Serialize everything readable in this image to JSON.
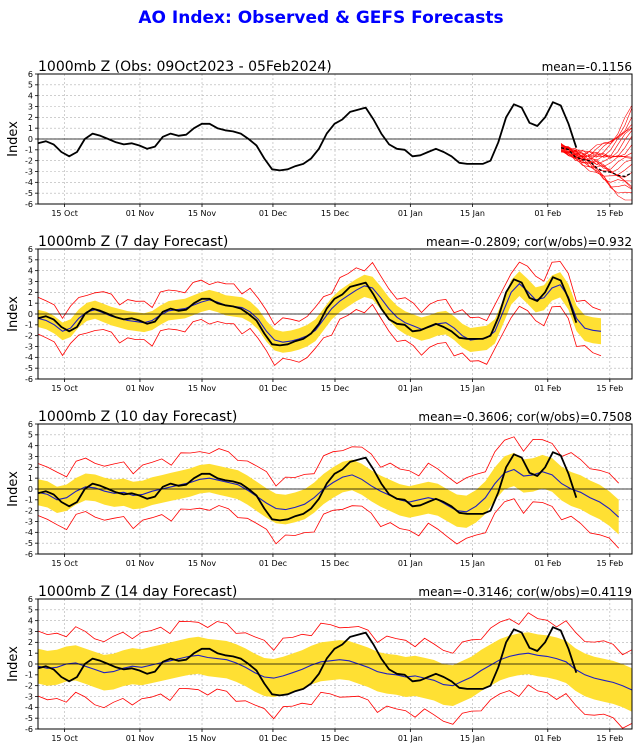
{
  "title": "AO Index: Observed & GEFS Forecasts",
  "colors": {
    "title": "#0000ff",
    "observed": "#000000",
    "ensemble": "#ff0000",
    "spread": "#ffe033",
    "mean": "#2020c0",
    "member": "#ff0000"
  },
  "chart_data": [
    {
      "type": "line",
      "title": "1000mb Z (Obs: 09Oct2023 - 05Feb2024)",
      "stat": "mean=-0.1156",
      "ylabel": "Index",
      "ylim": [
        -6,
        6
      ],
      "yticks": [
        "6",
        "5",
        "4",
        "3",
        "2",
        "1",
        "0",
        "-1",
        "-2",
        "-3",
        "-4",
        "-5",
        "-6"
      ],
      "xticks": [
        "15 Oct",
        "01 Nov",
        "15 Nov",
        "01 Dec",
        "15 Dec",
        "01 Jan",
        "15 Jan",
        "01 Feb",
        "15 Feb"
      ],
      "x_start": "09 Oct 2023",
      "x_end": "20 Feb 2024",
      "observed": {
        "start": "09 Oct 2023",
        "values": [
          -0.4,
          -0.2,
          -0.5,
          -1.2,
          -1.6,
          -1.2,
          0.0,
          0.5,
          0.3,
          0.0,
          -0.3,
          -0.5,
          -0.4,
          -0.6,
          -0.9,
          -0.7,
          0.2,
          0.5,
          0.3,
          0.4,
          1.0,
          1.4,
          1.4,
          1.0,
          0.8,
          0.7,
          0.5,
          0.0,
          -0.6,
          -1.8,
          -2.8,
          -2.9,
          -2.8,
          -2.5,
          -2.3,
          -1.8,
          -0.9,
          0.5,
          1.4,
          1.8,
          2.5,
          2.7,
          2.9,
          1.8,
          0.5,
          -0.5,
          -0.9,
          -1.0,
          -1.6,
          -1.5,
          -1.2,
          -0.9,
          -1.2,
          -1.6,
          -2.2,
          -2.3,
          -2.3,
          -2.3,
          -2.0,
          -0.3,
          2.0,
          3.2,
          2.9,
          1.5,
          1.2,
          2.0,
          3.4,
          3.1,
          1.4,
          -0.8
        ]
      },
      "ensemble": {
        "members": 21,
        "start": "04 Feb 2024",
        "end": "20 Feb 2024",
        "range": [
          -5.8,
          3.1
        ],
        "mean_end": -3.3
      }
    },
    {
      "type": "line",
      "title": "1000mb Z (7 day Forecast)",
      "stat": "mean=-0.2809; cor(w/obs)=0.932",
      "ylabel": "Index",
      "ylim": [
        -6,
        6
      ],
      "yticks": [
        "6",
        "5",
        "4",
        "3",
        "2",
        "1",
        "0",
        "-1",
        "-2",
        "-3",
        "-4",
        "-5",
        "-6"
      ],
      "xticks": [
        "15 Oct",
        "01 Nov",
        "15 Nov",
        "01 Dec",
        "15 Dec",
        "01 Jan",
        "15 Jan",
        "01 Feb",
        "15 Feb"
      ],
      "x_start": "09 Oct 2023",
      "x_end": "20 Feb 2024",
      "observed": {
        "start": "09 Oct 2023",
        "values": [
          -0.4,
          -0.2,
          -0.5,
          -1.2,
          -1.6,
          -1.2,
          0.0,
          0.5,
          0.3,
          0.0,
          -0.3,
          -0.5,
          -0.4,
          -0.6,
          -0.9,
          -0.7,
          0.2,
          0.5,
          0.3,
          0.4,
          1.0,
          1.4,
          1.4,
          1.0,
          0.8,
          0.7,
          0.5,
          0.0,
          -0.6,
          -1.8,
          -2.8,
          -2.9,
          -2.8,
          -2.5,
          -2.3,
          -1.8,
          -0.9,
          0.5,
          1.4,
          1.8,
          2.5,
          2.7,
          2.9,
          1.8,
          0.5,
          -0.5,
          -0.9,
          -1.0,
          -1.6,
          -1.5,
          -1.2,
          -0.9,
          -1.2,
          -1.6,
          -2.2,
          -2.3,
          -2.3,
          -2.3,
          -2.0,
          -0.3,
          2.0,
          3.2,
          2.9,
          1.5,
          1.2,
          2.0,
          3.4,
          3.1,
          1.4,
          -0.8
        ]
      },
      "forecast": {
        "start": "09 Oct 2023",
        "end": "13 Feb 2024",
        "mean": [
          -0.4,
          -0.6,
          -1.0,
          -1.6,
          -1.3,
          -0.4,
          0.2,
          0.4,
          0.1,
          -0.2,
          -0.4,
          -0.6,
          -0.7,
          -0.8,
          -0.6,
          -0.1,
          0.3,
          0.4,
          0.5,
          0.8,
          1.1,
          1.3,
          1.1,
          0.8,
          0.7,
          0.6,
          0.2,
          -0.5,
          -1.6,
          -2.4,
          -2.6,
          -2.5,
          -2.3,
          -2.0,
          -1.5,
          -0.5,
          0.5,
          1.2,
          1.7,
          2.2,
          2.6,
          2.4,
          1.5,
          0.5,
          -0.3,
          -0.8,
          -1.1,
          -1.4,
          -1.2,
          -0.9,
          -0.8,
          -1.3,
          -2.0,
          -2.4,
          -2.3,
          -2.2,
          -1.6,
          0.2,
          2.0,
          2.8,
          2.1,
          1.3,
          1.5,
          2.4,
          2.7,
          1.6,
          -0.4,
          -1.3,
          -1.5,
          -1.6
        ],
        "band_halfwidth": [
          0.8,
          0.9,
          1.0,
          1.1,
          1.2
        ],
        "outer_halfwidth": [
          1.7,
          1.8,
          1.9,
          2.0,
          2.1
        ]
      }
    },
    {
      "type": "line",
      "title": "1000mb Z (10 day Forecast)",
      "stat": "mean=-0.3606; cor(w/obs)=0.7508",
      "ylabel": "Index",
      "ylim": [
        -6,
        6
      ],
      "yticks": [
        "6",
        "5",
        "4",
        "3",
        "2",
        "1",
        "0",
        "-1",
        "-2",
        "-3",
        "-4",
        "-5",
        "-6"
      ],
      "xticks": [
        "15 Oct",
        "01 Nov",
        "15 Nov",
        "01 Dec",
        "15 Dec",
        "01 Jan",
        "15 Jan",
        "01 Feb",
        "15 Feb"
      ],
      "x_start": "09 Oct 2023",
      "x_end": "20 Feb 2024",
      "observed": {
        "start": "09 Oct 2023",
        "values": [
          -0.4,
          -0.2,
          -0.5,
          -1.2,
          -1.6,
          -1.2,
          0.0,
          0.5,
          0.3,
          0.0,
          -0.3,
          -0.5,
          -0.4,
          -0.6,
          -0.9,
          -0.7,
          0.2,
          0.5,
          0.3,
          0.4,
          1.0,
          1.4,
          1.4,
          1.0,
          0.8,
          0.7,
          0.5,
          0.0,
          -0.6,
          -1.8,
          -2.8,
          -2.9,
          -2.8,
          -2.5,
          -2.3,
          -1.8,
          -0.9,
          0.5,
          1.4,
          1.8,
          2.5,
          2.7,
          2.9,
          1.8,
          0.5,
          -0.5,
          -0.9,
          -1.0,
          -1.6,
          -1.5,
          -1.2,
          -0.9,
          -1.2,
          -1.6,
          -2.2,
          -2.3,
          -2.3,
          -2.3,
          -2.0,
          -0.3,
          2.0,
          3.2,
          2.9,
          1.5,
          1.2,
          2.0,
          3.4,
          3.1,
          1.4,
          -0.8
        ]
      },
      "forecast": {
        "start": "09 Oct 2023",
        "end": "17 Feb 2024",
        "mean": [
          -0.3,
          -0.5,
          -1.0,
          -0.8,
          -0.2,
          0.2,
          0.1,
          -0.2,
          -0.4,
          -0.3,
          -0.6,
          -0.5,
          -0.2,
          0.0,
          0.2,
          0.4,
          0.6,
          0.9,
          1.0,
          0.8,
          0.6,
          0.4,
          -0.1,
          -0.7,
          -1.3,
          -1.8,
          -1.9,
          -1.7,
          -1.4,
          -0.8,
          0.0,
          0.6,
          1.1,
          1.3,
          0.9,
          0.3,
          -0.2,
          -0.6,
          -1.0,
          -1.2,
          -1.0,
          -0.8,
          -1.0,
          -1.5,
          -2.0,
          -2.1,
          -1.6,
          -0.8,
          0.5,
          1.5,
          1.8,
          1.2,
          1.3,
          1.6,
          1.3,
          0.5,
          0.0,
          -0.3,
          -0.8,
          -1.2,
          -1.8,
          -2.6
        ],
        "band_halfwidth": [
          1.2,
          1.3,
          1.4,
          1.5,
          1.6
        ],
        "outer_halfwidth": [
          2.4,
          2.6,
          2.7,
          2.8,
          3.0
        ]
      }
    },
    {
      "type": "line",
      "title": "1000mb Z (14 day Forecast)",
      "stat": "mean=-0.3146; cor(w/obs)=0.4119",
      "ylabel": "Index",
      "ylim": [
        -6,
        6
      ],
      "yticks": [
        "6",
        "5",
        "4",
        "3",
        "2",
        "1",
        "0",
        "-1",
        "-2",
        "-3",
        "-4",
        "-5",
        "-6"
      ],
      "xticks": [
        "15 Oct",
        "01 Nov",
        "15 Nov",
        "01 Dec",
        "15 Dec",
        "01 Jan",
        "15 Jan",
        "01 Feb",
        "15 Feb"
      ],
      "x_start": "09 Oct 2023",
      "x_end": "20 Feb 2024",
      "observed": {
        "start": "09 Oct 2023",
        "values": [
          -0.4,
          -0.2,
          -0.5,
          -1.2,
          -1.6,
          -1.2,
          0.0,
          0.5,
          0.3,
          0.0,
          -0.3,
          -0.5,
          -0.4,
          -0.6,
          -0.9,
          -0.7,
          0.2,
          0.5,
          0.3,
          0.4,
          1.0,
          1.4,
          1.4,
          1.0,
          0.8,
          0.7,
          0.5,
          0.0,
          -0.6,
          -1.8,
          -2.8,
          -2.9,
          -2.8,
          -2.5,
          -2.3,
          -1.8,
          -0.9,
          0.5,
          1.4,
          1.8,
          2.5,
          2.7,
          2.9,
          1.8,
          0.5,
          -0.5,
          -0.9,
          -1.0,
          -1.6,
          -1.5,
          -1.2,
          -0.9,
          -1.2,
          -1.6,
          -2.2,
          -2.3,
          -2.3,
          -2.3,
          -2.0,
          -0.3,
          2.0,
          3.2,
          2.9,
          1.5,
          1.2,
          2.0,
          3.4,
          3.1,
          1.4,
          -0.8
        ]
      },
      "forecast": {
        "start": "09 Oct 2023",
        "end": "20 Feb 2024",
        "mean": [
          -0.2,
          -0.4,
          -0.3,
          0.0,
          0.1,
          -0.2,
          -0.5,
          -0.8,
          -0.7,
          -0.4,
          -0.2,
          -0.3,
          -0.1,
          0.1,
          0.3,
          0.5,
          0.7,
          0.8,
          0.6,
          0.5,
          0.4,
          0.1,
          -0.3,
          -0.8,
          -1.2,
          -1.3,
          -1.1,
          -0.8,
          -0.5,
          -0.1,
          0.2,
          0.3,
          0.4,
          0.3,
          0.0,
          -0.3,
          -0.7,
          -0.9,
          -1.0,
          -1.2,
          -1.1,
          -1.3,
          -1.5,
          -1.9,
          -2.0,
          -1.6,
          -1.2,
          -0.6,
          -0.1,
          0.4,
          0.7,
          0.9,
          1.0,
          0.8,
          0.7,
          0.5,
          0.2,
          -0.5,
          -1.0,
          -1.3,
          -1.5,
          -1.7,
          -2.0,
          -2.4
        ],
        "band_halfwidth": [
          1.6,
          1.7,
          1.8,
          1.9,
          2.0
        ],
        "outer_halfwidth": [
          3.0,
          3.1,
          3.2,
          3.3,
          3.4
        ]
      }
    }
  ]
}
